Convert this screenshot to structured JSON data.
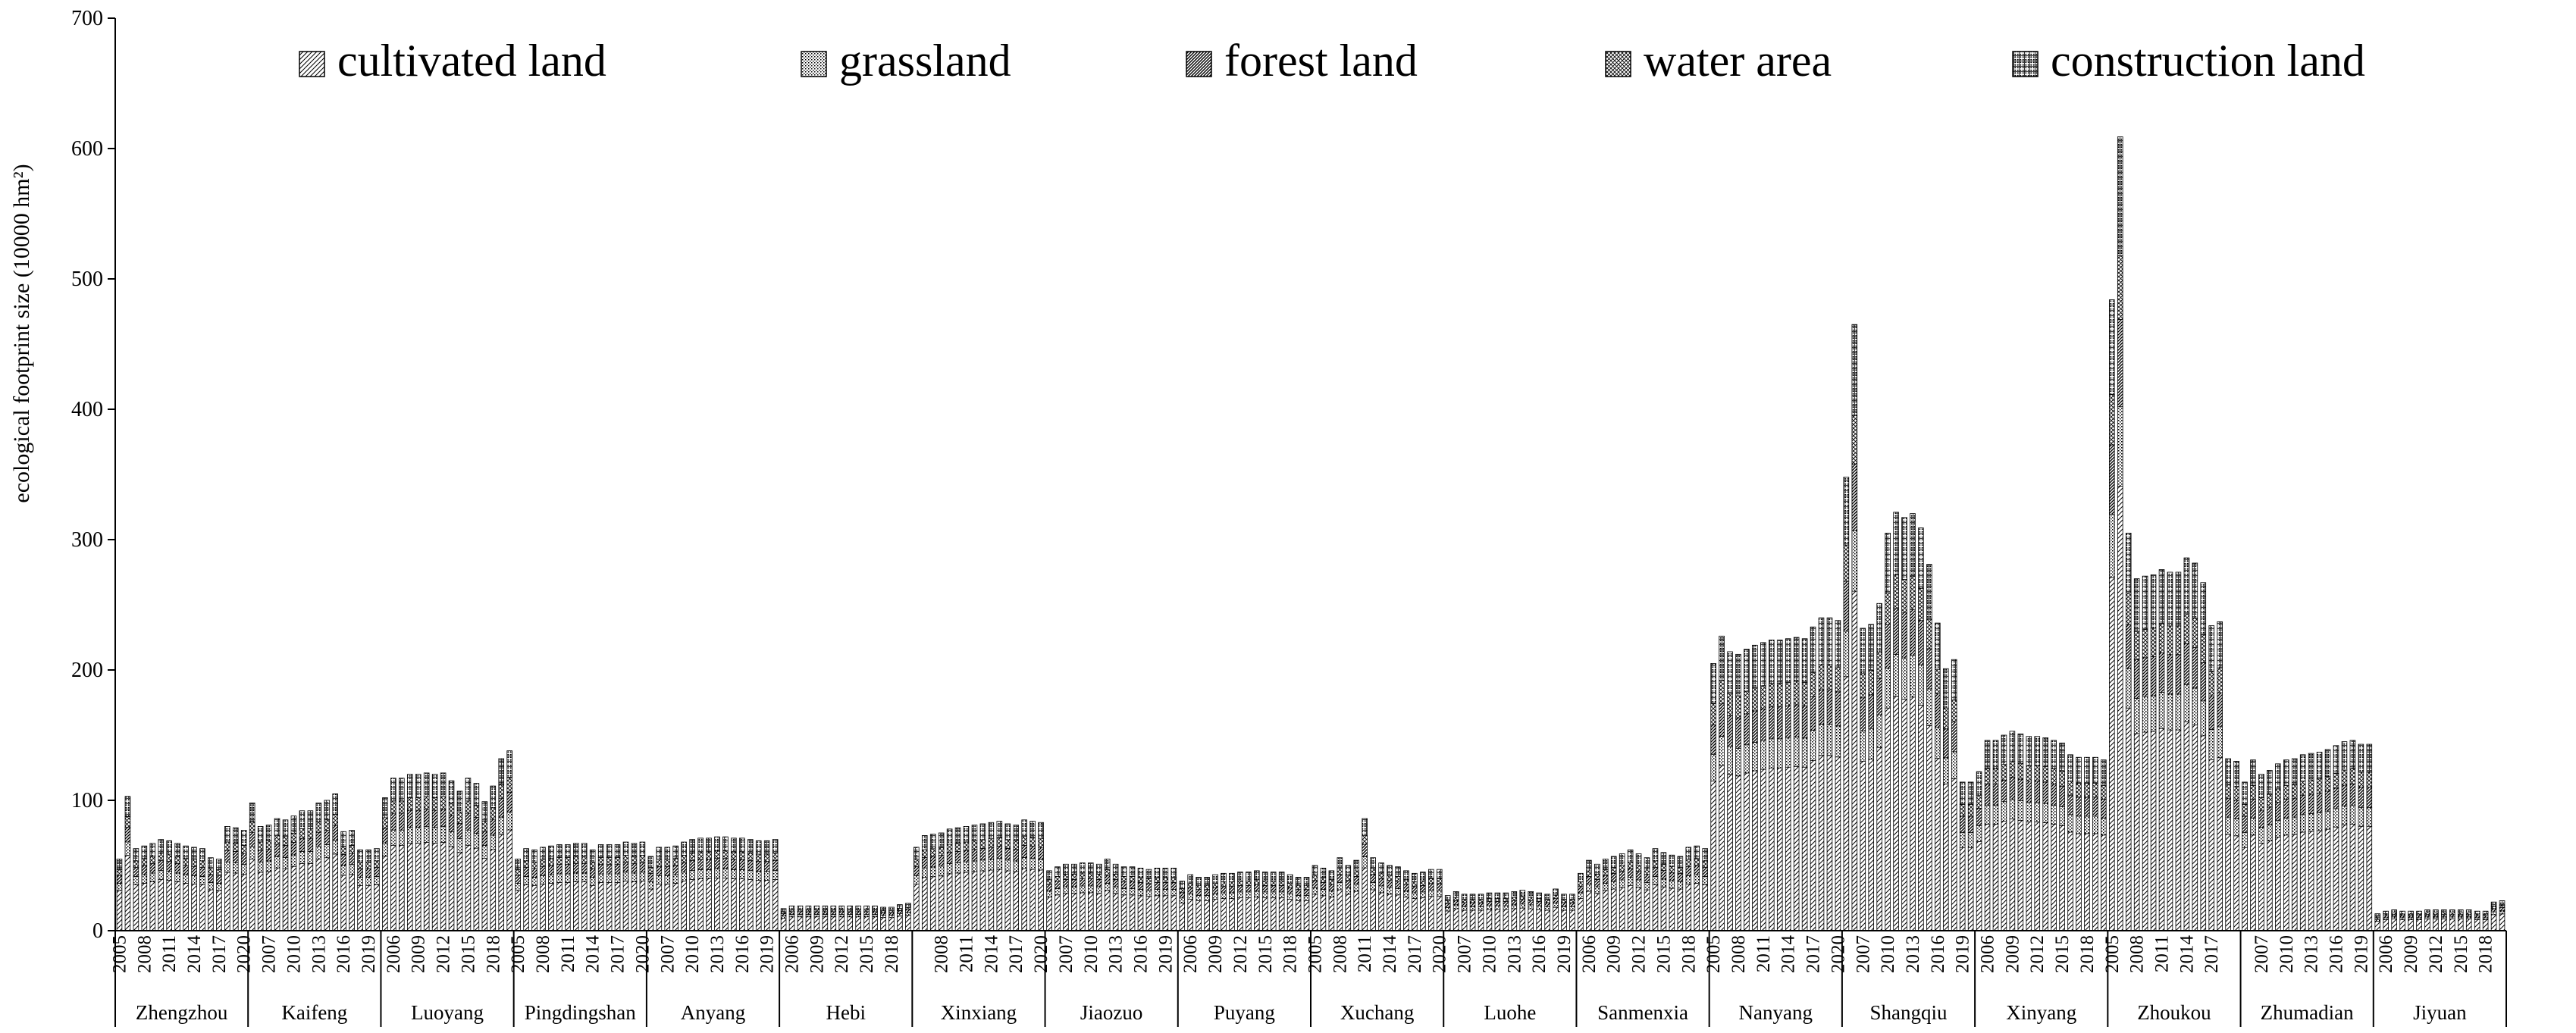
{
  "chart_data": {
    "type": "bar",
    "stacked": true,
    "ylabel": "ecological footprint size (10000 hm²)",
    "xlabel": "",
    "ylim": [
      0,
      700
    ],
    "yticks": [
      0,
      100,
      200,
      300,
      400,
      500,
      600,
      700
    ],
    "grid": false,
    "legend_position": "top",
    "legend": [
      {
        "name": "cultivated land",
        "pattern": "diag-light"
      },
      {
        "name": "grassland",
        "pattern": "dots-fine"
      },
      {
        "name": "forest land",
        "pattern": "diag-dense"
      },
      {
        "name": "water area",
        "pattern": "cross-hatch"
      },
      {
        "name": "construction land",
        "pattern": "grid-dots"
      }
    ],
    "years": [
      2005,
      2006,
      2007,
      2008,
      2009,
      2010,
      2011,
      2012,
      2013,
      2014,
      2015,
      2016,
      2017,
      2018,
      2019,
      2020
    ],
    "cities": [
      {
        "name": "Zhengzhou",
        "year_labels": [
          "2005",
          "2008",
          "2011",
          "2014",
          "2017",
          "2020"
        ],
        "totals": [
          55,
          103,
          63,
          65,
          67,
          70,
          69,
          67,
          65,
          64,
          63,
          56,
          55,
          80,
          79,
          77
        ]
      },
      {
        "name": "Kaifeng",
        "year_labels": [
          "2007",
          "2010",
          "2013",
          "2016",
          "2019"
        ],
        "totals": [
          98,
          80,
          81,
          86,
          85,
          88,
          92,
          92,
          98,
          100,
          105,
          76,
          77,
          62,
          62,
          63
        ]
      },
      {
        "name": "Luoyang",
        "year_labels": [
          "2006",
          "2009",
          "2012",
          "2015",
          "2018"
        ],
        "totals": [
          102,
          117,
          117,
          120,
          120,
          121,
          120,
          121,
          115,
          107,
          117,
          113,
          99,
          111,
          132,
          138
        ]
      },
      {
        "name": "Pingdingshan",
        "year_labels": [
          "2005",
          "2008",
          "2011",
          "2014",
          "2017",
          "2020"
        ],
        "totals": [
          55,
          63,
          62,
          64,
          65,
          66,
          66,
          67,
          67,
          62,
          66,
          66,
          66,
          68,
          67,
          68
        ]
      },
      {
        "name": "Anyang",
        "year_labels": [
          "2007",
          "2010",
          "2013",
          "2016",
          "2019"
        ],
        "totals": [
          57,
          64,
          64,
          65,
          68,
          70,
          71,
          71,
          72,
          72,
          71,
          71,
          70,
          69,
          69,
          70
        ]
      },
      {
        "name": "Hebi",
        "year_labels": [
          "2006",
          "2009",
          "2012",
          "2015",
          "2018"
        ],
        "totals": [
          17,
          19,
          19,
          19,
          19,
          19,
          19,
          19,
          19,
          19,
          19,
          19,
          18,
          18,
          20,
          21
        ]
      },
      {
        "name": "Xinxiang",
        "year_labels": [
          "2008",
          "2011",
          "2014",
          "2017",
          "2020"
        ],
        "totals": [
          64,
          73,
          74,
          75,
          78,
          79,
          80,
          81,
          82,
          83,
          84,
          82,
          81,
          85,
          84,
          83
        ]
      },
      {
        "name": "Jiaozuo",
        "year_labels": [
          "2007",
          "2010",
          "2013",
          "2016",
          "2019"
        ],
        "totals": [
          46,
          49,
          51,
          51,
          52,
          52,
          51,
          55,
          51,
          49,
          49,
          48,
          47,
          48,
          48,
          48
        ]
      },
      {
        "name": "Puyang",
        "year_labels": [
          "2006",
          "2009",
          "2012",
          "2015",
          "2018"
        ],
        "totals": [
          38,
          43,
          41,
          41,
          43,
          44,
          44,
          45,
          45,
          46,
          45,
          45,
          45,
          43,
          41,
          41
        ]
      },
      {
        "name": "Xuchang",
        "year_labels": [
          "2005",
          "2008",
          "2011",
          "2014",
          "2017",
          "2020"
        ],
        "totals": [
          50,
          48,
          46,
          56,
          50,
          54,
          86,
          56,
          52,
          50,
          49,
          46,
          44,
          45,
          47,
          47
        ]
      },
      {
        "name": "Luohe",
        "year_labels": [
          "2007",
          "2010",
          "2013",
          "2016",
          "2019"
        ],
        "totals": [
          27,
          30,
          28,
          28,
          28,
          29,
          29,
          29,
          30,
          31,
          30,
          29,
          28,
          32,
          28,
          28
        ]
      },
      {
        "name": "Sanmenxia",
        "year_labels": [
          "2006",
          "2009",
          "2012",
          "2015",
          "2018"
        ],
        "totals": [
          44,
          54,
          51,
          55,
          57,
          59,
          62,
          59,
          56,
          63,
          60,
          58,
          57,
          64,
          65,
          63
        ]
      },
      {
        "name": "Nanyang",
        "year_labels": [
          "2005",
          "2008",
          "2011",
          "2014",
          "2017",
          "2020"
        ],
        "totals": [
          205,
          226,
          214,
          212,
          216,
          219,
          221,
          223,
          223,
          224,
          225,
          224,
          233,
          240,
          240,
          238
        ]
      },
      {
        "name": "Shangqiu",
        "year_labels": [
          "2007",
          "2010",
          "2013",
          "2016",
          "2019"
        ],
        "totals": [
          348,
          465,
          232,
          235,
          251,
          305,
          321,
          317,
          320,
          309,
          281,
          236,
          201,
          208,
          114,
          114
        ]
      },
      {
        "name": "Xinyang",
        "year_labels": [
          "2006",
          "2009",
          "2012",
          "2015",
          "2018"
        ],
        "totals": [
          122,
          146,
          146,
          150,
          153,
          151,
          149,
          149,
          148,
          146,
          144,
          135,
          133,
          133,
          133,
          131
        ]
      },
      {
        "name": "Zhoukou",
        "year_labels": [
          "2005",
          "2008",
          "2011",
          "2014",
          "2017"
        ],
        "totals": [
          484,
          609,
          305,
          270,
          272,
          273,
          277,
          275,
          275,
          286,
          282,
          267,
          234,
          237,
          132,
          130
        ]
      },
      {
        "name": "Zhumadian",
        "year_labels": [
          "2007",
          "2010",
          "2013",
          "2016",
          "2019"
        ],
        "totals": [
          114,
          131,
          120,
          123,
          128,
          131,
          132,
          135,
          136,
          137,
          139,
          142,
          145,
          146,
          143,
          143
        ]
      },
      {
        "name": "Jiyuan",
        "year_labels": [
          "2006",
          "2009",
          "2012",
          "2015",
          "2018"
        ],
        "totals": [
          13,
          15,
          16,
          15,
          15,
          15,
          16,
          16,
          16,
          16,
          16,
          16,
          15,
          15,
          22,
          23
        ]
      }
    ]
  },
  "colors": {
    "axis": "#000000",
    "bar_fill": "#ffffff",
    "pattern_ink": "#000000"
  }
}
